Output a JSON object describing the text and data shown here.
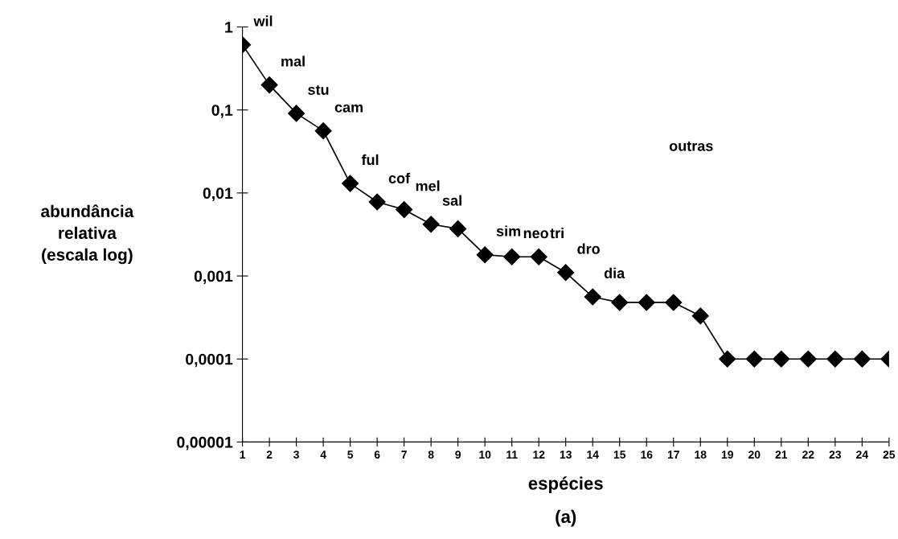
{
  "chart_data": {
    "type": "line",
    "categories": [
      "1",
      "2",
      "3",
      "4",
      "5",
      "6",
      "7",
      "8",
      "9",
      "10",
      "11",
      "12",
      "13",
      "14",
      "15",
      "16",
      "17",
      "18",
      "19",
      "20",
      "21",
      "22",
      "23",
      "24",
      "25"
    ],
    "series": [
      {
        "color": "#000000",
        "values": [
          0.61,
          0.2,
          0.091,
          0.056,
          0.013,
          0.0078,
          0.0063,
          0.0042,
          0.0037,
          0.0018,
          0.0017,
          0.0017,
          0.0011,
          0.00056,
          0.00048,
          0.00048,
          0.00048,
          0.00033,
          0.0001,
          0.0001,
          0.0001,
          0.0001,
          0.0001,
          0.0001,
          0.0001
        ]
      }
    ],
    "log": "y",
    "ylim": [
      1e-05,
      1
    ],
    "yticks": [
      {
        "value": 1e-05,
        "label": "0,00001"
      },
      {
        "value": 0.0001,
        "label": "0,0001"
      },
      {
        "value": 0.001,
        "label": "0,001"
      },
      {
        "value": 0.01,
        "label": "0,01"
      },
      {
        "value": 0.1,
        "label": "0,1"
      },
      {
        "value": 1,
        "label": "1"
      }
    ],
    "xlabel": "espécies",
    "ylabel": "abundância\nrelativa\n(escala log)",
    "marker": "diamond",
    "line_style": "solid",
    "grid": false,
    "legend": false,
    "annotations": [
      {
        "text": "wil",
        "x": "1",
        "y": 0.61
      },
      {
        "text": "mal",
        "x": "2",
        "y": 0.2
      },
      {
        "text": "stu",
        "x": "3",
        "y": 0.091
      },
      {
        "text": "cam",
        "x": "4",
        "y": 0.056
      },
      {
        "text": "ful",
        "x": "5",
        "y": 0.013
      },
      {
        "text": "cof",
        "x": "6",
        "y": 0.0078
      },
      {
        "text": "mel",
        "x": "7",
        "y": 0.0063
      },
      {
        "text": "sal",
        "x": "8",
        "y": 0.0042
      },
      {
        "text": "sim",
        "x": "10",
        "y": 0.0018
      },
      {
        "text": "neo",
        "x": "11",
        "y": 0.0017
      },
      {
        "text": "tri",
        "x": "12",
        "y": 0.0017
      },
      {
        "text": "dro",
        "x": "13",
        "y": 0.0011
      },
      {
        "text": "dia",
        "x": "14",
        "y": 0.00056
      },
      "outras",
      "(a)"
    ]
  }
}
